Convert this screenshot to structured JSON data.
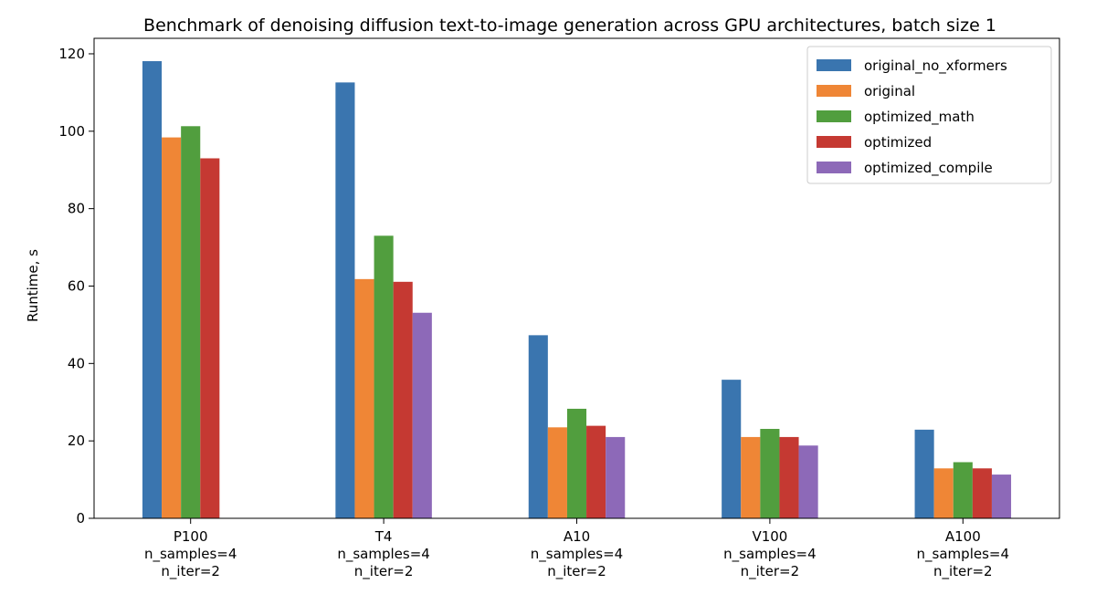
{
  "chart_data": {
    "type": "bar",
    "title": "Benchmark of denoising diffusion text-to-image generation across GPU architectures, batch size 1",
    "xlabel": "",
    "ylabel": "Runtime, s",
    "ylim": [
      0,
      124
    ],
    "yticks": [
      0,
      20,
      40,
      60,
      80,
      100,
      120
    ],
    "grid": false,
    "legend_position": "top-right",
    "categories": [
      [
        "P100",
        "n_samples=4",
        "n_iter=2"
      ],
      [
        "T4",
        "n_samples=4",
        "n_iter=2"
      ],
      [
        "A10",
        "n_samples=4",
        "n_iter=2"
      ],
      [
        "V100",
        "n_samples=4",
        "n_iter=2"
      ],
      [
        "A100",
        "n_samples=4",
        "n_iter=2"
      ]
    ],
    "series": [
      {
        "name": "original_no_xformers",
        "color": "#3a75af",
        "values": [
          118.1,
          112.6,
          47.3,
          35.8,
          22.9
        ]
      },
      {
        "name": "original",
        "color": "#ef8636",
        "values": [
          98.4,
          61.8,
          23.5,
          21.0,
          12.9
        ]
      },
      {
        "name": "optimized_math",
        "color": "#519e3e",
        "values": [
          101.3,
          73.0,
          28.3,
          23.1,
          14.5
        ]
      },
      {
        "name": "optimized",
        "color": "#c53932",
        "values": [
          93.0,
          61.1,
          23.9,
          21.0,
          12.9
        ]
      },
      {
        "name": "optimized_compile",
        "color": "#8d69b8",
        "values": [
          null,
          53.1,
          21.0,
          18.8,
          11.3
        ]
      }
    ]
  }
}
